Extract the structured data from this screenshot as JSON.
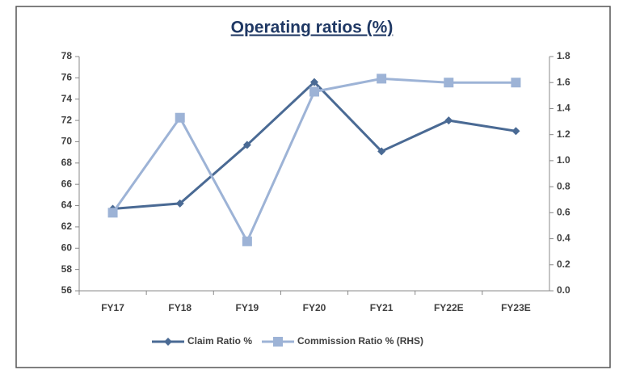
{
  "chart_data": {
    "type": "line",
    "title": "Operating ratios (%)",
    "categories": [
      "FY17",
      "FY18",
      "FY19",
      "FY20",
      "FY21",
      "FY22E",
      "FY23E"
    ],
    "series": [
      {
        "name": "Claim Ratio %",
        "color": "#4a6a94",
        "marker": "diamond",
        "values": [
          63.7,
          64.2,
          69.7,
          75.6,
          69.1,
          72.0,
          71.0
        ]
      },
      {
        "name": "Commission Ratio % (RHS)",
        "color": "#9db3d6",
        "marker": "square",
        "axis": "y2",
        "values": [
          0.6,
          1.33,
          0.38,
          1.53,
          1.63,
          1.6,
          1.6
        ]
      }
    ],
    "ylim": [
      56,
      78
    ],
    "yticks": [
      56,
      58,
      60,
      62,
      64,
      66,
      68,
      70,
      72,
      74,
      76,
      78
    ],
    "y2lim": [
      0,
      1.8
    ],
    "y2ticks": [
      {
        "value": 0,
        "label": "0.0"
      },
      0.2,
      0.4,
      0.6,
      0.8,
      {
        "value": 1,
        "label": "1.0"
      },
      1.2,
      1.4,
      1.6,
      1.8
    ],
    "legend": "bottom"
  }
}
